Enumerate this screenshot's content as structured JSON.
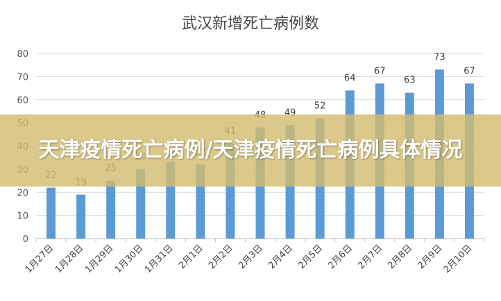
{
  "overlay": {
    "headline": "天津疫情死亡病例/天津疫情死亡病例具体情况"
  },
  "colors": {
    "bar": "#5b9bd5",
    "grid": "#d9d9d9",
    "axis": "#bfbfbf",
    "overlay": "#d2bc6e"
  },
  "chart_data": {
    "type": "bar",
    "title": "武汉新增死亡病例数",
    "xlabel": "",
    "ylabel": "",
    "ylim": [
      0,
      80
    ],
    "yticks": [
      0,
      10,
      20,
      30,
      40,
      50,
      60,
      70,
      80
    ],
    "grid": true,
    "legend": "none",
    "categories": [
      "1月27日",
      "1月28日",
      "1月29日",
      "1月30日",
      "1月31日",
      "2月1日",
      "2月2日",
      "2月3日",
      "2月4日",
      "2月5日",
      "2月6日",
      "2月7日",
      "2月8日",
      "2月9日",
      "2月10日"
    ],
    "series": [
      {
        "values": [
          22,
          19,
          25,
          30,
          33,
          32,
          41,
          48,
          49,
          52,
          64,
          67,
          63,
          73,
          67
        ]
      }
    ]
  }
}
